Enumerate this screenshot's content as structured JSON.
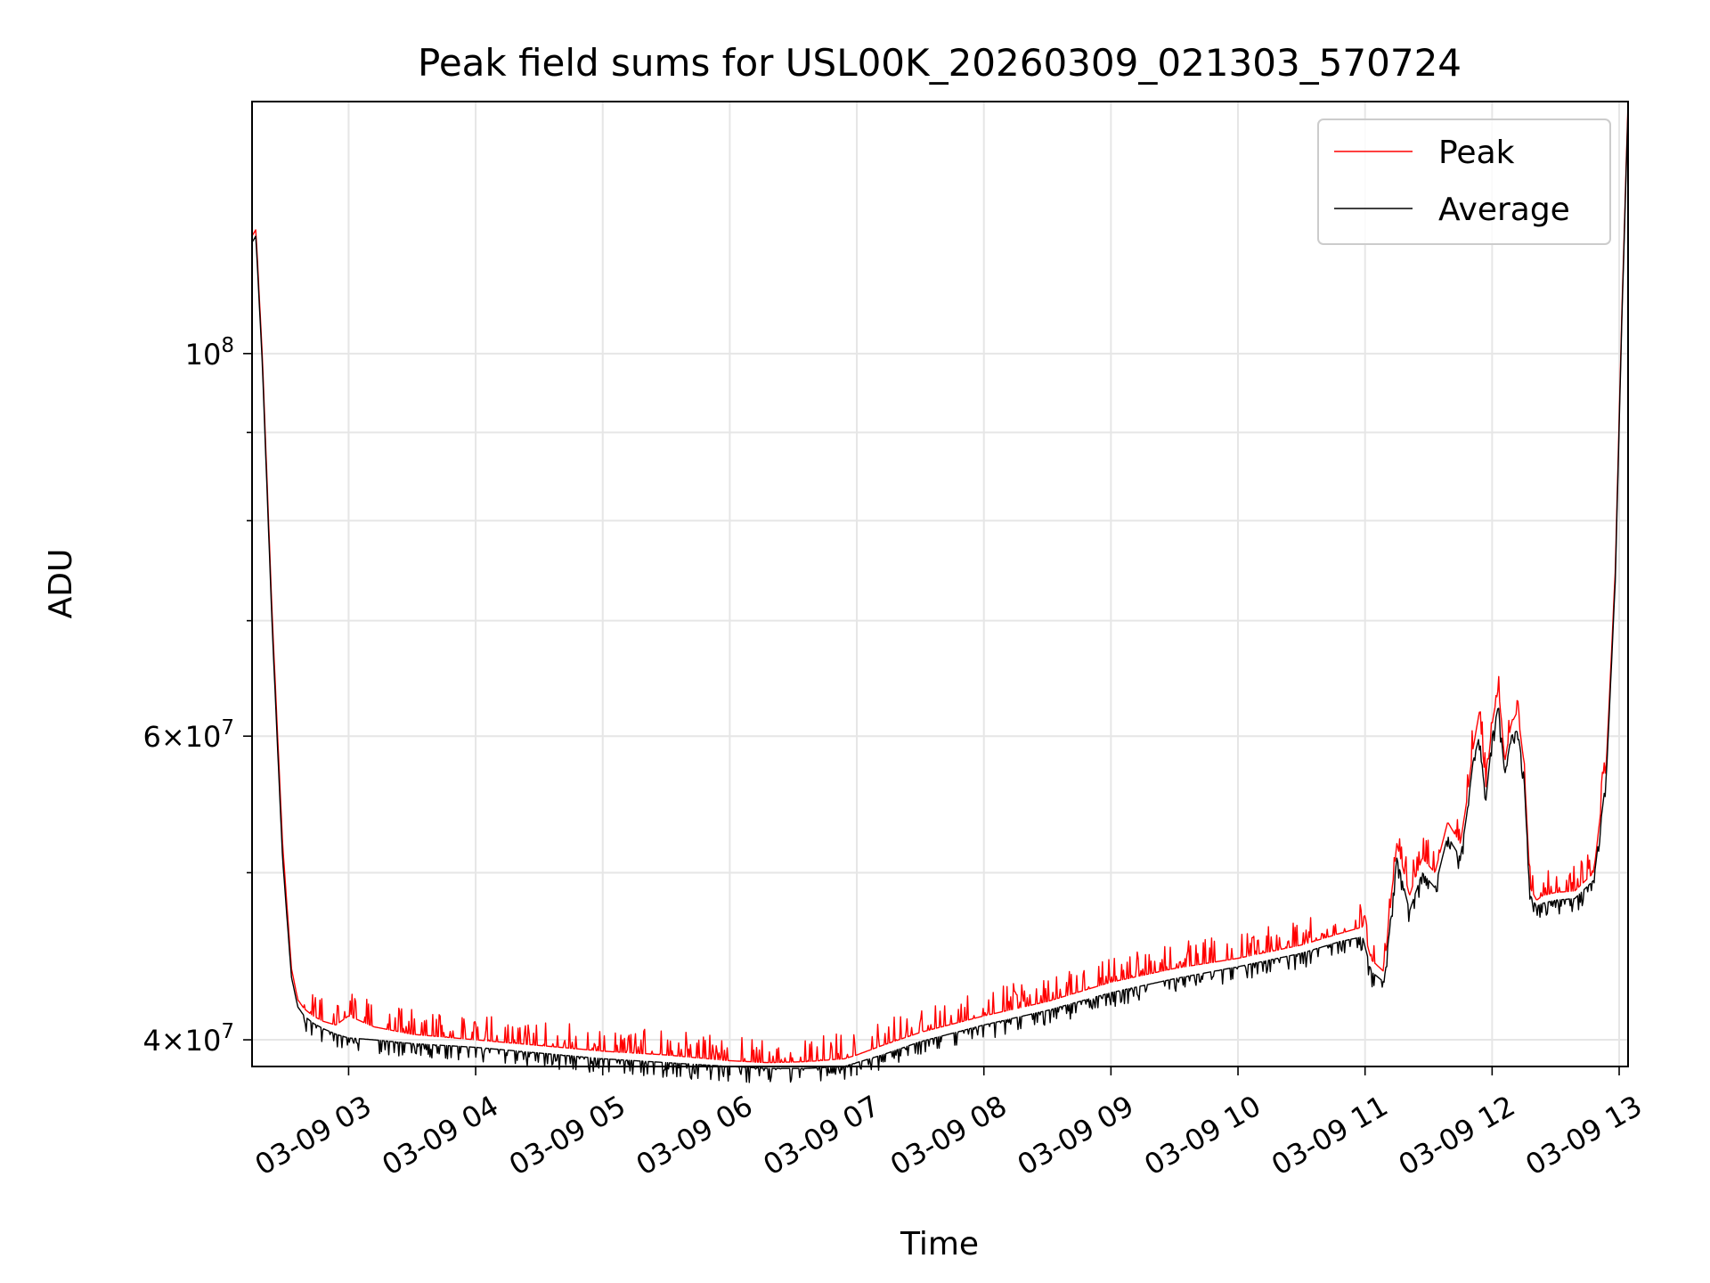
{
  "chart_data": {
    "type": "line",
    "title": "Peak field sums for USL00K_20260309_021303_570724",
    "xlabel": "Time",
    "ylabel": "ADU",
    "yscale": "log",
    "ylim": [
      38600000,
      140000000
    ],
    "xlim": [
      2.24,
      13.07
    ],
    "grid": true,
    "legend_position": "top-right",
    "x_ticks": [
      {
        "value": 3,
        "label": "03-09 03"
      },
      {
        "value": 4,
        "label": "03-09 04"
      },
      {
        "value": 5,
        "label": "03-09 05"
      },
      {
        "value": 6,
        "label": "03-09 06"
      },
      {
        "value": 7,
        "label": "03-09 07"
      },
      {
        "value": 8,
        "label": "03-09 08"
      },
      {
        "value": 9,
        "label": "03-09 09"
      },
      {
        "value": 10,
        "label": "03-09 10"
      },
      {
        "value": 11,
        "label": "03-09 11"
      },
      {
        "value": 12,
        "label": "03-09 12"
      },
      {
        "value": 13,
        "label": "03-09 13"
      }
    ],
    "y_major_ticks": [
      {
        "value": 100000000,
        "mantissa": "",
        "exponent": "8"
      },
      {
        "value": 60000000,
        "mantissa": "6",
        "exponent": "7"
      },
      {
        "value": 40000000,
        "mantissa": "4",
        "exponent": "7"
      }
    ],
    "y_minor_ticks": [
      50000000,
      70000000,
      80000000,
      90000000
    ],
    "series": [
      {
        "name": "Peak",
        "color": "#ff0000",
        "x": [
          2.24,
          2.27,
          2.32,
          2.4,
          2.48,
          2.55,
          2.6,
          2.65,
          2.72,
          2.8,
          2.9,
          3.0,
          3.2,
          3.5,
          4.0,
          4.5,
          5.0,
          5.5,
          6.0,
          6.3,
          6.6,
          6.9,
          7.0,
          7.2,
          7.5,
          8.0,
          8.5,
          9.0,
          9.5,
          10.0,
          10.5,
          10.8,
          10.98,
          11.05,
          11.15,
          11.25,
          11.35,
          11.45,
          11.55,
          11.65,
          11.75,
          11.8,
          11.85,
          11.9,
          11.95,
          12.0,
          12.05,
          12.1,
          12.15,
          12.2,
          12.25,
          12.3,
          12.35,
          12.4,
          12.5,
          12.65,
          12.8,
          12.9,
          12.97,
          13.02,
          13.07
        ],
        "y": [
          117000000,
          118000000,
          100000000,
          70000000,
          52000000,
          44000000,
          42200000,
          41700000,
          41300000,
          41000000,
          40800000,
          41300000,
          40700000,
          40300000,
          40000000,
          39700000,
          39400000,
          39200000,
          38900000,
          38800000,
          38850000,
          39000000,
          39200000,
          39700000,
          40400000,
          41300000,
          42100000,
          43200000,
          44000000,
          44600000,
          45400000,
          46100000,
          46500000,
          44500000,
          43800000,
          52000000,
          48500000,
          51000000,
          50000000,
          53500000,
          52000000,
          55000000,
          59000000,
          62000000,
          56000000,
          61000000,
          64000000,
          58000000,
          61000000,
          62000000,
          58000000,
          49000000,
          48200000,
          48500000,
          48700000,
          48800000,
          50000000,
          58000000,
          75000000,
          105000000,
          140000000
        ]
      },
      {
        "name": "Average",
        "color": "#000000",
        "x": [
          2.24,
          2.27,
          2.32,
          2.4,
          2.48,
          2.55,
          2.6,
          2.65,
          2.72,
          2.8,
          2.9,
          3.0,
          3.2,
          3.5,
          4.0,
          4.5,
          5.0,
          5.5,
          6.0,
          6.3,
          6.6,
          6.9,
          7.0,
          7.2,
          7.5,
          8.0,
          8.5,
          9.0,
          9.5,
          10.0,
          10.5,
          10.8,
          10.98,
          11.05,
          11.15,
          11.25,
          11.35,
          11.45,
          11.55,
          11.65,
          11.75,
          11.8,
          11.85,
          11.9,
          11.95,
          12.0,
          12.05,
          12.1,
          12.15,
          12.2,
          12.25,
          12.3,
          12.35,
          12.4,
          12.5,
          12.65,
          12.8,
          12.9,
          12.97,
          13.02,
          13.07
        ],
        "y": [
          116000000,
          117000000,
          99000000,
          69000000,
          51000000,
          43500000,
          41800000,
          41300000,
          40900000,
          40600000,
          40300000,
          40100000,
          40000000,
          39800000,
          39600000,
          39300000,
          39000000,
          38800000,
          38600000,
          38500000,
          38500000,
          38600000,
          38800000,
          39200000,
          39900000,
          40800000,
          41600000,
          42600000,
          43400000,
          44100000,
          44900000,
          45600000,
          45900000,
          43800000,
          43200000,
          51000000,
          47500000,
          50000000,
          49000000,
          52500000,
          51000000,
          54000000,
          58000000,
          60000000,
          55000000,
          60000000,
          62500000,
          57000000,
          60000000,
          60500000,
          57000000,
          48500000,
          47800000,
          48000000,
          48200000,
          48300000,
          49500000,
          57000000,
          74000000,
          104000000,
          139000000
        ]
      }
    ]
  }
}
